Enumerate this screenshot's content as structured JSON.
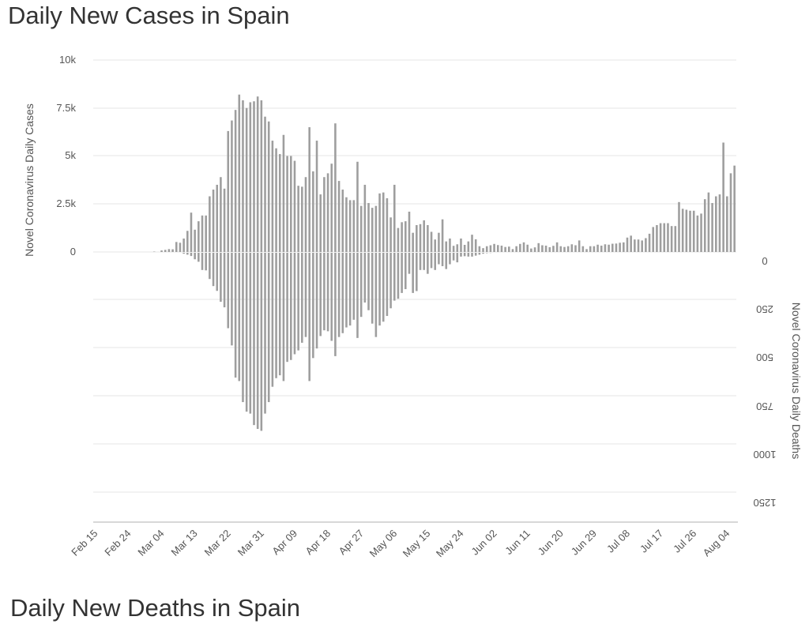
{
  "titles": {
    "top": "Daily New Cases in Spain",
    "bottom": "Daily New Deaths in Spain"
  },
  "chart_data": {
    "type": "bar",
    "title": "Daily New Cases in Spain",
    "xlabel": "",
    "ylabel": "Novel Coronavirus Daily Cases",
    "y2label": "Novel Coronavirus Daily Deaths",
    "x_start": "Feb 15",
    "x_tick_labels": [
      "Feb 15",
      "Feb 24",
      "Mar 04",
      "Mar 13",
      "Mar 22",
      "Mar 31",
      "Apr 09",
      "Apr 18",
      "Apr 27",
      "May 06",
      "May 15",
      "May 24",
      "Jun 02",
      "Jun 11",
      "Jun 20",
      "Jun 29",
      "Jul 08",
      "Jul 17",
      "Jul 26",
      "Aug 04"
    ],
    "y_ticks": [
      "0",
      "2.5k",
      "5k",
      "7.5k",
      "10k"
    ],
    "y2_ticks": [
      "0",
      "250",
      "500",
      "750",
      "1000",
      "1250"
    ],
    "ylim": [
      0,
      10000
    ],
    "y2lim": [
      0,
      1250
    ],
    "grid": true,
    "bar_color": "#9e9e9e",
    "series": [
      {
        "name": "Novel Coronavirus Daily Cases",
        "axis": "left",
        "values": [
          0,
          0,
          0,
          0,
          0,
          0,
          0,
          0,
          0,
          0,
          0,
          0,
          0,
          0,
          0,
          0,
          20,
          0,
          80,
          110,
          150,
          140,
          520,
          480,
          700,
          1100,
          2050,
          1160,
          1600,
          1900,
          1900,
          2900,
          3250,
          3500,
          3900,
          3300,
          6300,
          6850,
          7400,
          8200,
          7900,
          7500,
          7800,
          7850,
          8100,
          7900,
          7050,
          6800,
          5800,
          5400,
          5100,
          6100,
          5000,
          5000,
          4750,
          3450,
          3400,
          3900,
          6500,
          4200,
          5800,
          3000,
          3900,
          4100,
          4600,
          6700,
          3700,
          3250,
          2850,
          2700,
          2700,
          4700,
          2400,
          3500,
          2550,
          2300,
          2400,
          3050,
          3100,
          2800,
          1800,
          3500,
          1250,
          1550,
          1600,
          2100,
          1000,
          1400,
          1450,
          1650,
          1400,
          1050,
          650,
          1000,
          1700,
          550,
          700,
          320,
          400,
          700,
          370,
          550,
          900,
          660,
          300,
          200,
          300,
          350,
          420,
          360,
          330,
          260,
          280,
          150,
          300,
          420,
          500,
          380,
          180,
          240,
          460,
          350,
          330,
          250,
          320,
          500,
          300,
          260,
          300,
          400,
          350,
          600,
          300,
          150,
          300,
          300,
          380,
          330,
          400,
          380,
          430,
          440,
          480,
          500,
          750,
          850,
          650,
          650,
          600,
          720,
          950,
          1300,
          1400,
          1500,
          1500,
          1500,
          1350,
          1350,
          2600,
          2250,
          2200,
          2150,
          2150,
          1900,
          2000,
          2750,
          3100,
          2550,
          2900,
          3000,
          5700,
          2900,
          4100,
          4500
        ]
      },
      {
        "name": "Novel Coronavirus Daily Deaths",
        "axis": "right",
        "values": [
          0,
          0,
          0,
          0,
          0,
          0,
          0,
          0,
          0,
          0,
          0,
          0,
          0,
          0,
          0,
          0,
          0,
          0,
          0,
          0,
          0,
          0,
          0,
          0,
          5,
          10,
          17,
          34,
          47,
          90,
          92,
          137,
          174,
          199,
          256,
          285,
          394,
          484,
          652,
          670,
          780,
          830,
          840,
          900,
          920,
          930,
          840,
          780,
          700,
          655,
          640,
          670,
          570,
          560,
          530,
          510,
          470,
          440,
          670,
          550,
          500,
          435,
          405,
          410,
          460,
          540,
          440,
          420,
          390,
          380,
          350,
          445,
          335,
          260,
          300,
          370,
          440,
          380,
          360,
          330,
          290,
          250,
          240,
          210,
          190,
          110,
          210,
          200,
          90,
          90,
          110,
          80,
          90,
          60,
          70,
          85,
          60,
          40,
          50,
          20,
          18,
          20,
          20,
          15,
          10,
          5,
          2,
          1,
          0,
          0,
          0,
          0,
          0,
          0,
          0,
          0,
          0,
          0,
          0,
          0,
          0,
          0,
          0,
          0,
          0,
          0,
          0,
          0,
          0,
          0,
          0,
          0,
          0,
          0,
          0,
          0,
          0,
          0,
          0,
          0,
          0,
          0,
          0,
          0,
          0,
          0,
          0,
          0,
          0,
          0,
          0,
          0,
          0,
          0,
          0,
          0,
          0,
          0,
          0,
          0,
          0,
          0,
          0,
          0,
          0,
          0,
          0,
          0,
          0,
          0,
          0,
          0,
          0,
          0,
          0,
          0
        ]
      }
    ]
  }
}
